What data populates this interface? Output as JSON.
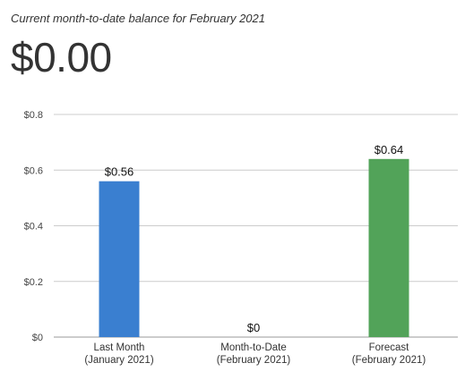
{
  "header": {
    "subtitle": "Current month-to-date balance for February 2021",
    "balance": "$0.00"
  },
  "chart_data": {
    "type": "bar",
    "categories": [
      [
        "Last Month",
        "(January 2021)"
      ],
      [
        "Month-to-Date",
        "(February 2021)"
      ],
      [
        "Forecast",
        "(February 2021)"
      ]
    ],
    "values": [
      0.56,
      0,
      0.64
    ],
    "data_labels": [
      "$0.56",
      "$0",
      "$0.64"
    ],
    "colors": [
      "#3a7fd0",
      "#3a7fd0",
      "#52a359"
    ],
    "ylim": [
      0,
      0.8
    ],
    "yticks": [
      0,
      0.2,
      0.4,
      0.6,
      0.8
    ],
    "ytick_labels": [
      "$0",
      "$0.2",
      "$0.4",
      "$0.6",
      "$0.8"
    ],
    "grid": true,
    "legend": "none"
  }
}
